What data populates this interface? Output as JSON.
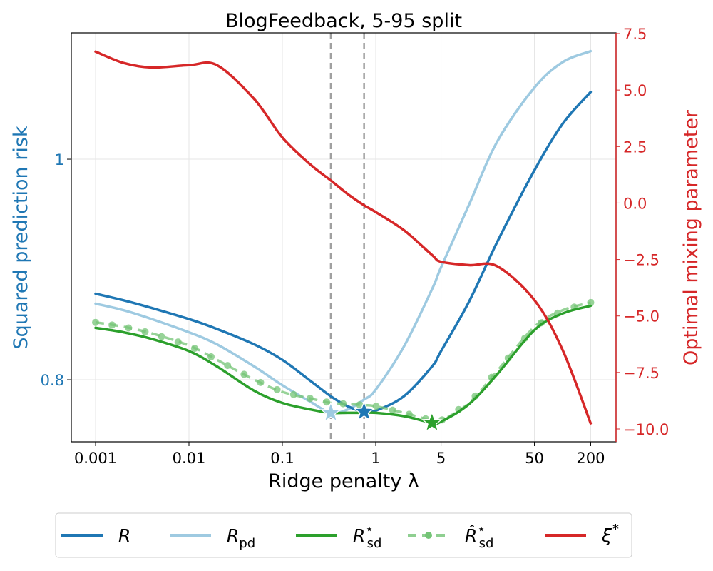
{
  "chart_data": {
    "type": "line",
    "title": "BlogFeedback, 5-95 split",
    "xlabel": "Ridge penalty λ",
    "ylabel": "Squared prediction risk",
    "ylabel_right": "Optimal mixing parameter",
    "xscale": "log",
    "xlim": [
      0.0006,
      400
    ],
    "ylim": [
      0.7437,
      1.1146
    ],
    "ylim_right": [
      -10.55,
      7.5
    ],
    "x_ticks": [
      "0.001",
      "0.01",
      "0.1",
      "1",
      "5",
      "50",
      "200"
    ],
    "x_tick_values": [
      0.001,
      0.01,
      0.1,
      1,
      5,
      50,
      200
    ],
    "y_ticks_left": [
      "0.8",
      "1"
    ],
    "y_tick_values_left": [
      0.8,
      1.0
    ],
    "y_ticks_right": [
      "7.5",
      "5.0",
      "2.5",
      "0.0",
      "−2.5",
      "−5.0",
      "−7.5",
      "−10.0"
    ],
    "y_tick_values_right": [
      7.5,
      5.0,
      2.5,
      0.0,
      -2.5,
      -5.0,
      -7.5,
      -10.0
    ],
    "grid": true,
    "legend_position": "below",
    "vertical_lines": [
      {
        "x": 0.33,
        "style": "dashed",
        "color": "#999999"
      },
      {
        "x": 0.75,
        "style": "dashed",
        "color": "#999999"
      }
    ],
    "x": [
      0.001,
      0.002,
      0.004,
      0.01,
      0.02,
      0.05,
      0.1,
      0.2,
      0.33,
      0.5,
      0.75,
      1,
      2,
      4,
      5,
      10,
      20,
      50,
      100,
      200
    ],
    "series": [
      {
        "name": "R",
        "axis": "left",
        "color": "#1f77b4",
        "style": "solid",
        "values": [
          0.878,
          0.872,
          0.865,
          0.855,
          0.846,
          0.832,
          0.818,
          0.799,
          0.785,
          0.776,
          0.771,
          0.772,
          0.785,
          0.812,
          0.826,
          0.871,
          0.925,
          0.99,
          1.032,
          1.061
        ],
        "minimum": {
          "x": 0.75,
          "y": 0.771,
          "marker": "star"
        }
      },
      {
        "name": "R_pd",
        "axis": "left",
        "color": "#9ecae1",
        "style": "solid",
        "values": [
          0.869,
          0.863,
          0.855,
          0.843,
          0.832,
          0.812,
          0.795,
          0.78,
          0.77,
          0.773,
          0.782,
          0.791,
          0.83,
          0.882,
          0.902,
          0.959,
          1.016,
          1.065,
          1.088,
          1.098
        ],
        "minimum": {
          "x": 0.33,
          "y": 0.77,
          "marker": "star"
        }
      },
      {
        "name": "R*_sd",
        "axis": "left",
        "color": "#2ca02c",
        "style": "solid",
        "values": [
          0.847,
          0.843,
          0.837,
          0.826,
          0.812,
          0.79,
          0.779,
          0.773,
          0.77,
          0.77,
          0.77,
          0.77,
          0.767,
          0.761,
          0.762,
          0.778,
          0.805,
          0.845,
          0.86,
          0.867
        ],
        "minimum": {
          "x": 4,
          "y": 0.761,
          "marker": "star"
        }
      },
      {
        "name": "R̂*_sd",
        "axis": "left",
        "color": "#74c476",
        "style": "dashed-with-dots",
        "values": [
          0.852,
          0.848,
          0.842,
          0.831,
          0.818,
          0.8,
          0.789,
          0.783,
          0.779,
          0.778,
          0.777,
          0.776,
          0.77,
          0.763,
          0.763,
          0.779,
          0.808,
          0.848,
          0.863,
          0.87
        ]
      },
      {
        "name": "ξ*",
        "axis": "right",
        "color": "#d62728",
        "style": "solid",
        "values": [
          6.7,
          6.2,
          6.0,
          6.1,
          6.1,
          4.6,
          2.9,
          1.7,
          1.0,
          0.4,
          -0.1,
          -0.4,
          -1.2,
          -2.3,
          -2.6,
          -2.75,
          -2.8,
          -4.3,
          -6.5,
          -9.75
        ]
      }
    ]
  },
  "legend": {
    "items": [
      {
        "label": "R",
        "sub": "",
        "sup": ""
      },
      {
        "label": "R",
        "sub": "pd",
        "sup": ""
      },
      {
        "label": "R",
        "sub": "sd",
        "sup": "⋆"
      },
      {
        "label": "R̂",
        "sub": "sd",
        "sup": "⋆"
      },
      {
        "label": "ξ",
        "sub": "",
        "sup": "*"
      }
    ]
  }
}
